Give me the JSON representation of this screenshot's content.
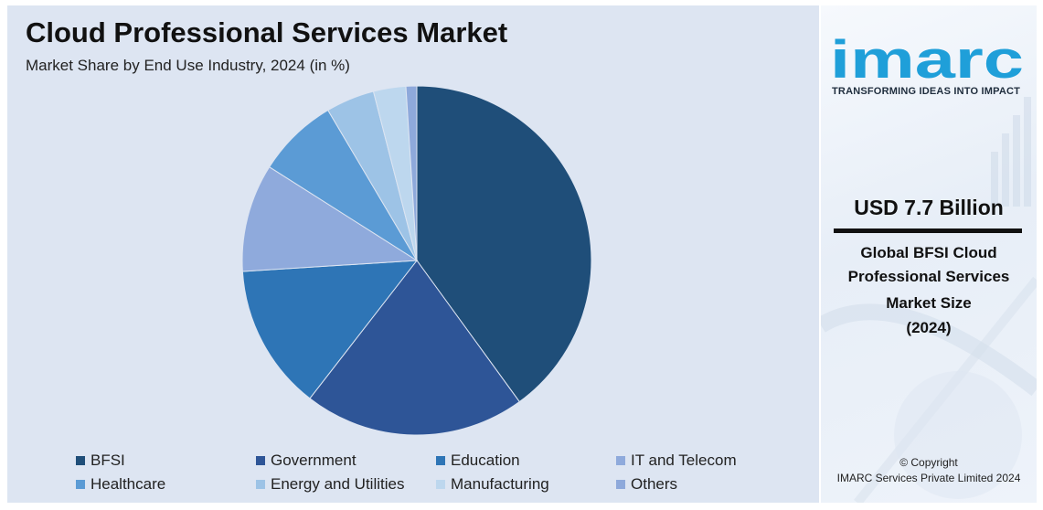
{
  "chart_data": {
    "type": "pie",
    "title": "Cloud Professional Services Market",
    "subtitle": "Market Share by End Use Industry, 2024 (in %)",
    "categories": [
      "BFSI",
      "Government",
      "Education",
      "IT and Telecom",
      "Healthcare",
      "Energy and Utilities",
      "Manufacturing",
      "Others"
    ],
    "values": [
      40,
      20.5,
      13.5,
      10,
      7.5,
      4.5,
      3,
      1
    ],
    "colors": [
      "#1f4e79",
      "#2e5597",
      "#2e75b6",
      "#8faadc",
      "#5b9bd5",
      "#9dc3e6",
      "#bdd7ee",
      "#8ea9db"
    ],
    "legend_position": "bottom"
  },
  "brand": {
    "logo_text": "imarc",
    "tagline": "TRANSFORMING IDEAS INTO IMPACT",
    "logo_color": "#1f9fd9"
  },
  "stat": {
    "value": "USD 7.7 Billion",
    "caption_lines": [
      "Global  BFSI Cloud",
      "Professional Services",
      "Market Size",
      "(2024)"
    ]
  },
  "footer": {
    "copyright": "© Copyright",
    "company": "IMARC Services Private Limited 2024"
  }
}
